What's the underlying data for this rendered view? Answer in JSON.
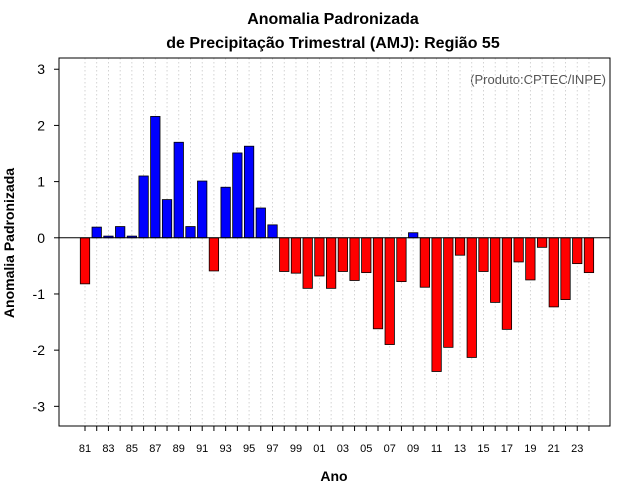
{
  "chart_data": {
    "type": "bar",
    "title": "Anomalia Padronizada",
    "subtitle": "de Precipitação Trimestral (AMJ): Região 55",
    "xlabel": "Ano",
    "ylabel": "Anomalia Padronizada",
    "annotation": "(Produto:CPTEC/INPE)",
    "ylim": [
      -3.35,
      3.2
    ],
    "yticks": [
      -3,
      -2,
      -1,
      0,
      1,
      2,
      3
    ],
    "grid": "vertical dotted",
    "colors": {
      "positive": "#0000ff",
      "negative": "#ff0000"
    },
    "categories": [
      "81",
      "82",
      "83",
      "84",
      "85",
      "86",
      "87",
      "88",
      "89",
      "90",
      "91",
      "92",
      "93",
      "94",
      "95",
      "96",
      "97",
      "98",
      "99",
      "00",
      "01",
      "02",
      "03",
      "04",
      "05",
      "06",
      "07",
      "08",
      "09",
      "10",
      "11",
      "12",
      "13",
      "14",
      "15",
      "16",
      "17",
      "18",
      "19",
      "20",
      "21",
      "22",
      "23",
      "24"
    ],
    "xtick_labels": [
      "81",
      "83",
      "85",
      "87",
      "89",
      "91",
      "93",
      "95",
      "97",
      "99",
      "01",
      "03",
      "05",
      "07",
      "09",
      "11",
      "13",
      "15",
      "17",
      "19",
      "21",
      "23"
    ],
    "values": [
      -0.82,
      0.19,
      0.03,
      0.2,
      0.03,
      1.1,
      2.16,
      0.68,
      1.7,
      0.2,
      1.01,
      -0.59,
      0.9,
      1.51,
      1.63,
      0.53,
      0.23,
      -0.6,
      -0.63,
      -0.9,
      -0.68,
      -0.9,
      -0.6,
      -0.76,
      -0.62,
      -1.62,
      -1.9,
      -0.78,
      0.09,
      -0.88,
      -2.38,
      -1.95,
      -0.31,
      -2.13,
      -0.6,
      -1.15,
      -1.63,
      -0.43,
      -0.75,
      -0.17,
      -1.23,
      -1.1,
      -0.46,
      -0.62
    ]
  }
}
